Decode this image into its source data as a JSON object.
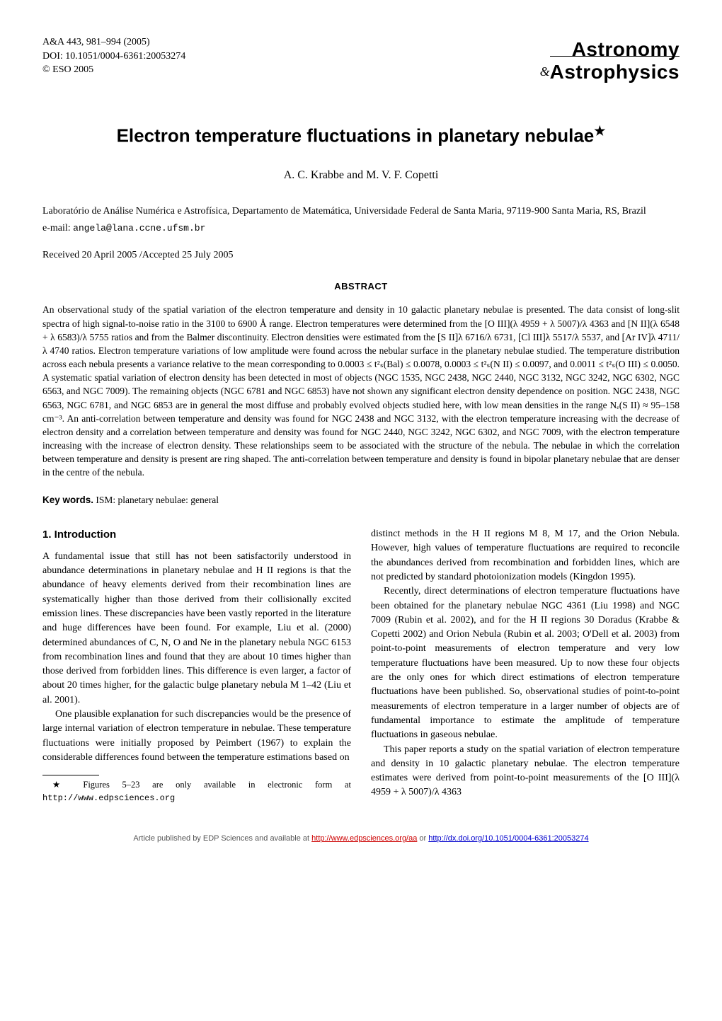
{
  "header": {
    "journal_line": "A&A 443, 981–994 (2005)",
    "doi_line": "DOI: 10.1051/0004-6361:20053274",
    "copyright_line": "© ESO 2005",
    "logo_top": "Astronomy",
    "logo_amp": "&",
    "logo_bottom": "Astrophysics"
  },
  "title": "Electron temperature fluctuations in planetary nebulae",
  "title_star": "★",
  "authors": "A. C. Krabbe and M. V. F. Copetti",
  "affiliation": "Laboratório de Análise Numérica e Astrofísica, Departamento de Matemática, Universidade Federal de Santa Maria, 97119-900 Santa Maria, RS, Brazil",
  "email_label": "e-mail: ",
  "email": "angela@lana.ccne.ufsm.br",
  "dates": "Received 20 April 2005 /Accepted 25 July 2005",
  "abstract_heading": "ABSTRACT",
  "abstract": "An observational study of the spatial variation of the electron temperature and density in 10 galactic planetary nebulae is presented. The data consist of long-slit spectra of high signal-to-noise ratio in the 3100 to 6900 Å range. Electron temperatures were determined from the [O III](λ 4959 + λ 5007)/λ 4363 and [N II](λ 6548 + λ 6583)/λ 5755 ratios and from the Balmer discontinuity. Electron densities were estimated from the [S II]λ 6716/λ 6731, [Cl III]λ 5517/λ 5537, and [Ar IV]λ 4711/λ 4740 ratios. Electron temperature variations of low amplitude were found across the nebular surface in the planetary nebulae studied. The temperature distribution across each nebula presents a variance relative to the mean corresponding to 0.0003 ≤ t²ₛ(Bal) ≤ 0.0078, 0.0003 ≤ t²ₛ(N II) ≤ 0.0097, and 0.0011 ≤ t²ₛ(O III) ≤ 0.0050. A systematic spatial variation of electron density has been detected in most of objects (NGC 1535, NGC 2438, NGC 2440, NGC 3132, NGC 3242, NGC 6302, NGC 6563, and NGC 7009). The remaining objects (NGC 6781 and NGC 6853) have not shown any significant electron density dependence on position. NGC 2438, NGC 6563, NGC 6781, and NGC 6853 are in general the most diffuse and probably evolved objects studied here, with low mean densities in the range Nₑ(S II) ≈ 95–158 cm⁻³. An anti-correlation between temperature and density was found for NGC 2438 and NGC 3132, with the electron temperature increasing with the decrease of electron density and a correlation between temperature and density was found for NGC 2440, NGC 3242, NGC 6302, and NGC 7009, with the electron temperature increasing with the increase of electron density. These relationships seem to be associated with the structure of the nebula. The nebulae in which the correlation between temperature and density is present are ring shaped. The anti-correlation between temperature and density is found in bipolar planetary nebulae that are denser in the centre of the nebula.",
  "keywords_label": "Key words.",
  "keywords": " ISM: planetary nebulae: general",
  "section1_heading": "1. Introduction",
  "col1": {
    "p1": "A fundamental issue that still has not been satisfactorily understood in abundance determinations in planetary nebulae and H II regions is that the abundance of heavy elements derived from their recombination lines are systematically higher than those derived from their collisionally excited emission lines. These discrepancies have been vastly reported in the literature and huge differences have been found. For example, Liu et al. (2000) determined abundances of C, N, O and Ne in the planetary nebula NGC 6153 from recombination lines and found that they are about 10 times higher than those derived from forbidden lines. This difference is even larger, a factor of about 20 times higher, for the galactic bulge planetary nebula M 1–42 (Liu et al. 2001).",
    "p2": "One plausible explanation for such discrepancies would be the presence of large internal variation of electron temperature in nebulae. These temperature fluctuations were initially proposed by Peimbert (1967) to explain the considerable differences found between the temperature estimations based on"
  },
  "footnote_star": "★",
  "footnote_text_a": " Figures 5–23 are only available in electronic form at ",
  "footnote_url": "http://www.edpsciences.org",
  "col2": {
    "p1": "distinct methods in the H II regions M 8, M 17, and the Orion Nebula. However, high values of temperature fluctuations are required to reconcile the abundances derived from recombination and forbidden lines, which are not predicted by standard photoionization models (Kingdon 1995).",
    "p2": "Recently, direct determinations of electron temperature fluctuations have been obtained for the planetary nebulae NGC 4361 (Liu 1998) and NGC 7009 (Rubin et al. 2002), and for the H II regions 30 Doradus (Krabbe & Copetti 2002) and Orion Nebula (Rubin et al. 2003; O'Dell et al. 2003) from point-to-point measurements of electron temperature and very low temperature fluctuations have been measured. Up to now these four objects are the only ones for which direct estimations of electron temperature fluctuations have been published. So, observational studies of point-to-point measurements of electron temperature in a larger number of objects are of fundamental importance to estimate the amplitude of temperature fluctuations in gaseous nebulae.",
    "p3": "This paper reports a study on the spatial variation of electron temperature and density in 10 galactic planetary nebulae. The electron temperature estimates were derived from point-to-point measurements of the [O III](λ 4959 + λ 5007)/λ 4363"
  },
  "footer": {
    "prefix": "Article published by EDP Sciences and available at ",
    "link1": "http://www.edpsciences.org/aa",
    "or": " or ",
    "link2": "http://dx.doi.org/10.1051/0004-6361:20053274"
  }
}
